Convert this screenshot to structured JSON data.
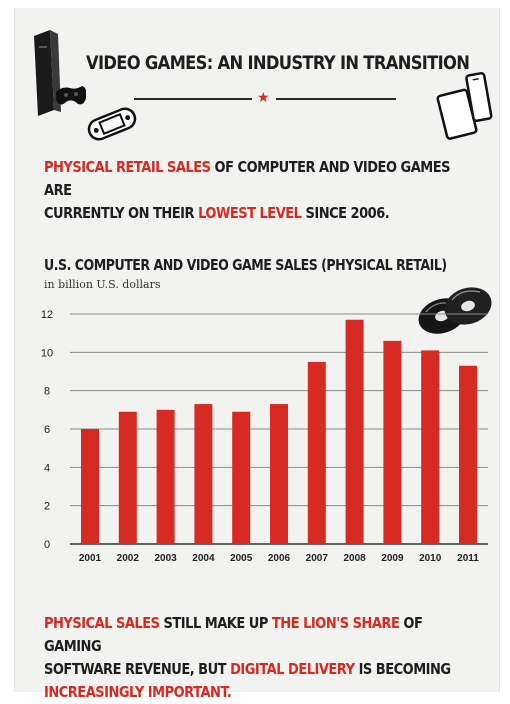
{
  "header": {
    "title": "VIDEO GAMES: AN INDUSTRY IN TRANSITION"
  },
  "intro": {
    "part1": "PHYSICAL RETAIL SALES",
    "part2": " OF COMPUTER AND VIDEO GAMES ARE",
    "part3": "CURRENTLY ON THEIR ",
    "part4": "LOWEST LEVEL",
    "part5": " SINCE 2006."
  },
  "chart_data": {
    "type": "bar",
    "title": "U.S. COMPUTER AND VIDEO GAME SALES (PHYSICAL RETAIL)",
    "ylabel": "in billion U.S. dollars",
    "categories": [
      "2001",
      "2002",
      "2003",
      "2004",
      "2005",
      "2006",
      "2007",
      "2008",
      "2009",
      "2010",
      "2011"
    ],
    "values": [
      6.0,
      6.9,
      7.0,
      7.3,
      6.9,
      7.3,
      9.5,
      11.7,
      10.6,
      10.1,
      9.3
    ],
    "yticks": [
      "0",
      "2",
      "4",
      "6",
      "8",
      "10",
      "12"
    ],
    "ylim": [
      0,
      12
    ],
    "grid": true,
    "bar_color": "#d62a22"
  },
  "outro": {
    "part1": "PHYSICAL SALES",
    "part2": " STILL MAKE UP ",
    "part3": "THE LION'S SHARE",
    "part4": " OF GAMING",
    "part5": "SOFTWARE REVENUE, BUT ",
    "part6": "DIGITAL DELIVERY",
    "part7": " IS BECOMING",
    "part8": "INCREASINGLY IMPORTANT."
  },
  "colors": {
    "accent": "#d62a22",
    "text": "#1e1e1e",
    "background": "#f2f2f0"
  },
  "icons": [
    "game-console-icon",
    "gamepad-icon",
    "handheld-console-icon",
    "tablet-icon",
    "smartphone-icon",
    "disc-icon"
  ]
}
